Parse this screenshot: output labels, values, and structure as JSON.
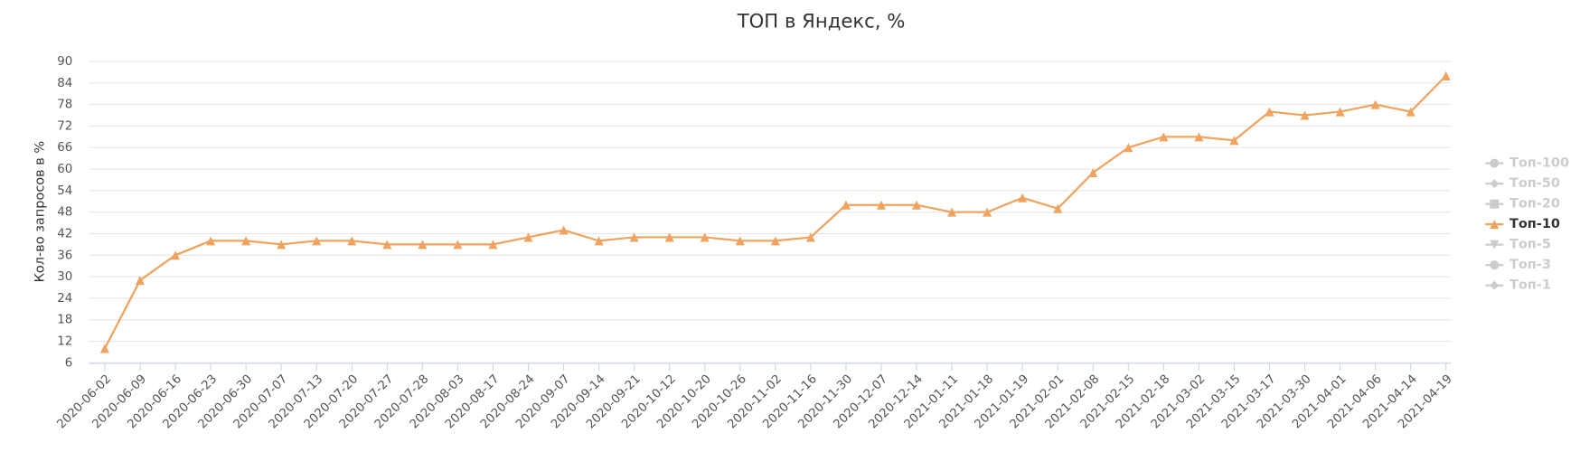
{
  "chart_data": {
    "type": "line",
    "title": "ТОП в Яндекс, %",
    "y_label": "Кол-во запросов в %",
    "categories": [
      "2020-06-02",
      "2020-06-09",
      "2020-06-16",
      "2020-06-23",
      "2020-06-30",
      "2020-07-07",
      "2020-07-13",
      "2020-07-20",
      "2020-07-27",
      "2020-07-28",
      "2020-08-03",
      "2020-08-17",
      "2020-08-24",
      "2020-09-07",
      "2020-09-14",
      "2020-09-21",
      "2020-10-12",
      "2020-10-20",
      "2020-10-26",
      "2020-11-02",
      "2020-11-16",
      "2020-11-30",
      "2020-12-07",
      "2020-12-14",
      "2021-01-11",
      "2021-01-18",
      "2021-01-19",
      "2021-02-01",
      "2021-02-08",
      "2021-02-15",
      "2021-02-18",
      "2021-03-02",
      "2021-03-15",
      "2021-03-17",
      "2021-03-30",
      "2021-04-01",
      "2021-04-06",
      "2021-04-14",
      "2021-04-19"
    ],
    "series": [
      {
        "name": "Топ-100",
        "symbol": "circle",
        "visible": false
      },
      {
        "name": "Топ-50",
        "symbol": "diamond",
        "visible": false
      },
      {
        "name": "Топ-20",
        "symbol": "square",
        "visible": false
      },
      {
        "name": "Топ-10",
        "symbol": "triangle",
        "visible": true,
        "color": "#f0a35e",
        "values": [
          10,
          29,
          36,
          40,
          40,
          39,
          40,
          40,
          39,
          39,
          39,
          39,
          41,
          43,
          40,
          41,
          41,
          41,
          40,
          40,
          41,
          50,
          50,
          50,
          48,
          48,
          52,
          49,
          59,
          66,
          69,
          69,
          68,
          76,
          75,
          76,
          78,
          76,
          86
        ]
      },
      {
        "name": "Топ-5",
        "symbol": "triangle-down",
        "visible": false
      },
      {
        "name": "Топ-3",
        "symbol": "circle",
        "visible": false
      },
      {
        "name": "Топ-1",
        "symbol": "diamond",
        "visible": false
      }
    ],
    "ylim": [
      6,
      90
    ],
    "yticks": [
      6,
      12,
      18,
      24,
      30,
      36,
      42,
      48,
      54,
      60,
      66,
      72,
      78,
      84,
      90
    ],
    "grid": true,
    "legend": "right"
  }
}
